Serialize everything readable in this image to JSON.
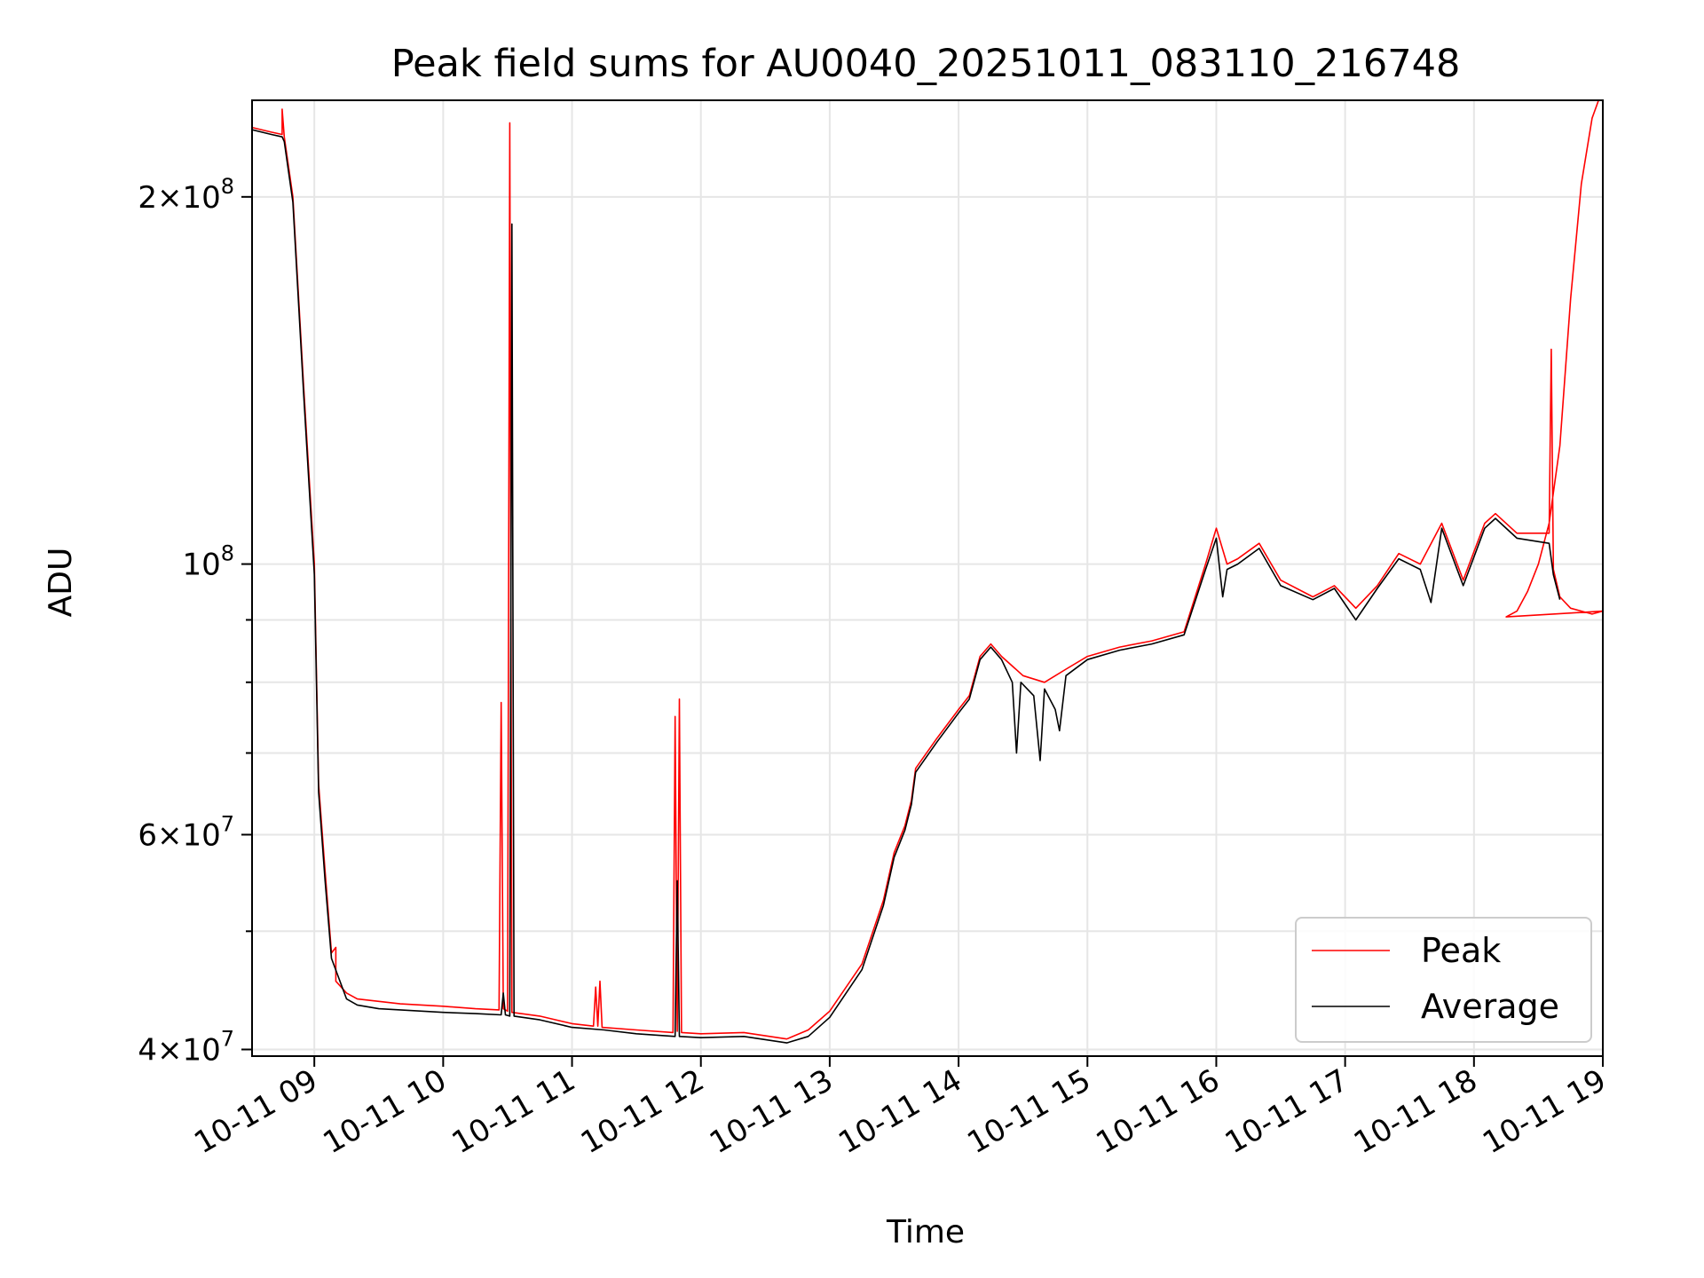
{
  "chart_data": {
    "type": "line",
    "title": "Peak field sums for AU0040_20251011_083110_216748",
    "xlabel": "Time",
    "ylabel": "ADU",
    "yscale": "log",
    "grid": true,
    "legend_position": "bottom-right",
    "xlim": [
      "2025-10-11 08:31",
      "2025-10-11 19:00"
    ],
    "ylim": [
      39500000,
      240000000
    ],
    "x_ticks": [
      {
        "value": "2025-10-11 09:00",
        "label": "10-11 09"
      },
      {
        "value": "2025-10-11 10:00",
        "label": "10-11 10"
      },
      {
        "value": "2025-10-11 11:00",
        "label": "10-11 11"
      },
      {
        "value": "2025-10-11 12:00",
        "label": "10-11 12"
      },
      {
        "value": "2025-10-11 13:00",
        "label": "10-11 13"
      },
      {
        "value": "2025-10-11 14:00",
        "label": "10-11 14"
      },
      {
        "value": "2025-10-11 15:00",
        "label": "10-11 15"
      },
      {
        "value": "2025-10-11 16:00",
        "label": "10-11 16"
      },
      {
        "value": "2025-10-11 17:00",
        "label": "10-11 17"
      },
      {
        "value": "2025-10-11 18:00",
        "label": "10-11 18"
      },
      {
        "value": "2025-10-11 19:00",
        "label": "10-11 19"
      }
    ],
    "y_ticks": [
      {
        "value": 40000000,
        "mantissa": "4",
        "exponent": "7"
      },
      {
        "value": 60000000,
        "mantissa": "6",
        "exponent": "7"
      },
      {
        "value": 100000000,
        "mantissa": "",
        "exponent": "8"
      },
      {
        "value": 200000000,
        "mantissa": "2",
        "exponent": "8"
      }
    ],
    "y_minor_ticks": [
      50000000,
      70000000,
      80000000,
      90000000
    ],
    "series": [
      {
        "name": "Peak",
        "color": "#ff0000",
        "points": [
          [
            "2025-10-11 08:31",
            228000000
          ],
          [
            "2025-10-11 08:40",
            226000000
          ],
          [
            "2025-10-11 08:45",
            225000000
          ],
          [
            "2025-10-11 08:45",
            236000000
          ],
          [
            "2025-10-11 08:46",
            224000000
          ],
          [
            "2025-10-11 08:50",
            200000000
          ],
          [
            "2025-10-11 08:55",
            140000000
          ],
          [
            "2025-10-11 09:00",
            100000000
          ],
          [
            "2025-10-11 09:02",
            66000000
          ],
          [
            "2025-10-11 09:05",
            56000000
          ],
          [
            "2025-10-11 09:08",
            48000000
          ],
          [
            "2025-10-11 09:10",
            48500000
          ],
          [
            "2025-10-11 09:10",
            45500000
          ],
          [
            "2025-10-11 09:15",
            44500000
          ],
          [
            "2025-10-11 09:20",
            44000000
          ],
          [
            "2025-10-11 09:30",
            43800000
          ],
          [
            "2025-10-11 09:40",
            43600000
          ],
          [
            "2025-10-11 09:50",
            43500000
          ],
          [
            "2025-10-11 10:00",
            43400000
          ],
          [
            "2025-10-11 10:15",
            43200000
          ],
          [
            "2025-10-11 10:26",
            43100000
          ],
          [
            "2025-10-11 10:27",
            77000000
          ],
          [
            "2025-10-11 10:28",
            43200000
          ],
          [
            "2025-10-11 10:30",
            43000000
          ],
          [
            "2025-10-11 10:31",
            230000000
          ],
          [
            "2025-10-11 10:32",
            42900000
          ],
          [
            "2025-10-11 10:45",
            42600000
          ],
          [
            "2025-10-11 11:00",
            42000000
          ],
          [
            "2025-10-11 11:10",
            41800000
          ],
          [
            "2025-10-11 11:11",
            45000000
          ],
          [
            "2025-10-11 11:12",
            41800000
          ],
          [
            "2025-10-11 11:13",
            45500000
          ],
          [
            "2025-10-11 11:14",
            41700000
          ],
          [
            "2025-10-11 11:30",
            41500000
          ],
          [
            "2025-10-11 11:47",
            41300000
          ],
          [
            "2025-10-11 11:48",
            75000000
          ],
          [
            "2025-10-11 11:49",
            41400000
          ],
          [
            "2025-10-11 11:50",
            77500000
          ],
          [
            "2025-10-11 11:51",
            41300000
          ],
          [
            "2025-10-11 12:00",
            41200000
          ],
          [
            "2025-10-11 12:20",
            41300000
          ],
          [
            "2025-10-11 12:40",
            40800000
          ],
          [
            "2025-10-11 12:50",
            41500000
          ],
          [
            "2025-10-11 13:00",
            43000000
          ],
          [
            "2025-10-11 13:15",
            47000000
          ],
          [
            "2025-10-11 13:25",
            53000000
          ],
          [
            "2025-10-11 13:30",
            58000000
          ],
          [
            "2025-10-11 13:35",
            61000000
          ],
          [
            "2025-10-11 13:38",
            64000000
          ],
          [
            "2025-10-11 13:40",
            68000000
          ],
          [
            "2025-10-11 13:50",
            72000000
          ],
          [
            "2025-10-11 14:00",
            76000000
          ],
          [
            "2025-10-11 14:05",
            78000000
          ],
          [
            "2025-10-11 14:10",
            84000000
          ],
          [
            "2025-10-11 14:15",
            86000000
          ],
          [
            "2025-10-11 14:20",
            84000000
          ],
          [
            "2025-10-11 14:30",
            81000000
          ],
          [
            "2025-10-11 14:40",
            80000000
          ],
          [
            "2025-10-11 14:50",
            82000000
          ],
          [
            "2025-10-11 15:00",
            84000000
          ],
          [
            "2025-10-11 15:15",
            85500000
          ],
          [
            "2025-10-11 15:30",
            86500000
          ],
          [
            "2025-10-11 15:45",
            88000000
          ],
          [
            "2025-10-11 15:55",
            100000000
          ],
          [
            "2025-10-11 16:00",
            107000000
          ],
          [
            "2025-10-11 16:05",
            100000000
          ],
          [
            "2025-10-11 16:10",
            101000000
          ],
          [
            "2025-10-11 16:20",
            104000000
          ],
          [
            "2025-10-11 16:30",
            97000000
          ],
          [
            "2025-10-11 16:45",
            94000000
          ],
          [
            "2025-10-11 16:55",
            96000000
          ],
          [
            "2025-10-11 17:05",
            92000000
          ],
          [
            "2025-10-11 17:15",
            96000000
          ],
          [
            "2025-10-11 17:25",
            102000000
          ],
          [
            "2025-10-11 17:35",
            100000000
          ],
          [
            "2025-10-11 17:45",
            108000000
          ],
          [
            "2025-10-11 17:55",
            97000000
          ],
          [
            "2025-10-11 18:05",
            108000000
          ],
          [
            "2025-10-11 18:10",
            110000000
          ],
          [
            "2025-10-11 18:20",
            106000000
          ],
          [
            "2025-10-11 18:35",
            106000000
          ],
          [
            "2025-10-11 18:36",
            150000000
          ],
          [
            "2025-10-11 18:37",
            99000000
          ],
          [
            "2025-10-11 18:40",
            94000000
          ],
          [
            "2025-10-11 18:45",
            92000000
          ],
          [
            "2025-10-11 18:55",
            91000000
          ],
          [
            "2025-10-11 19:00",
            91500000
          ],
          [
            "2025-10-11 18:15",
            90500000
          ],
          [
            "2025-10-11 18:20",
            91500000
          ],
          [
            "2025-10-11 18:25",
            95000000
          ],
          [
            "2025-10-11 18:30",
            100000000
          ],
          [
            "2025-10-11 18:35",
            108000000
          ],
          [
            "2025-10-11 18:40",
            125000000
          ],
          [
            "2025-10-11 18:45",
            165000000
          ],
          [
            "2025-10-11 18:50",
            205000000
          ],
          [
            "2025-10-11 18:55",
            232000000
          ],
          [
            "2025-10-11 18:58",
            240000000
          ]
        ]
      },
      {
        "name": "Average",
        "color": "#000000",
        "points": [
          [
            "2025-10-11 08:31",
            227000000
          ],
          [
            "2025-10-11 08:40",
            225000000
          ],
          [
            "2025-10-11 08:45",
            224000000
          ],
          [
            "2025-10-11 08:46",
            222000000
          ],
          [
            "2025-10-11 08:50",
            198000000
          ],
          [
            "2025-10-11 08:55",
            138000000
          ],
          [
            "2025-10-11 09:00",
            98000000
          ],
          [
            "2025-10-11 09:02",
            65000000
          ],
          [
            "2025-10-11 09:05",
            55000000
          ],
          [
            "2025-10-11 09:08",
            47500000
          ],
          [
            "2025-10-11 09:15",
            44000000
          ],
          [
            "2025-10-11 09:20",
            43500000
          ],
          [
            "2025-10-11 09:30",
            43200000
          ],
          [
            "2025-10-11 09:40",
            43100000
          ],
          [
            "2025-10-11 09:50",
            43000000
          ],
          [
            "2025-10-11 10:00",
            42900000
          ],
          [
            "2025-10-11 10:15",
            42800000
          ],
          [
            "2025-10-11 10:27",
            42700000
          ],
          [
            "2025-10-11 10:28",
            44500000
          ],
          [
            "2025-10-11 10:29",
            42700000
          ],
          [
            "2025-10-11 10:31",
            42600000
          ],
          [
            "2025-10-11 10:32",
            190000000
          ],
          [
            "2025-10-11 10:33",
            42600000
          ],
          [
            "2025-10-11 10:45",
            42300000
          ],
          [
            "2025-10-11 11:00",
            41700000
          ],
          [
            "2025-10-11 11:15",
            41500000
          ],
          [
            "2025-10-11 11:30",
            41200000
          ],
          [
            "2025-10-11 11:48",
            41000000
          ],
          [
            "2025-10-11 11:49",
            55000000
          ],
          [
            "2025-10-11 11:50",
            41000000
          ],
          [
            "2025-10-11 12:00",
            40900000
          ],
          [
            "2025-10-11 12:20",
            41000000
          ],
          [
            "2025-10-11 12:40",
            40500000
          ],
          [
            "2025-10-11 12:50",
            41000000
          ],
          [
            "2025-10-11 13:00",
            42500000
          ],
          [
            "2025-10-11 13:15",
            46500000
          ],
          [
            "2025-10-11 13:25",
            52500000
          ],
          [
            "2025-10-11 13:30",
            57500000
          ],
          [
            "2025-10-11 13:35",
            60500000
          ],
          [
            "2025-10-11 13:38",
            63500000
          ],
          [
            "2025-10-11 13:40",
            67500000
          ],
          [
            "2025-10-11 13:50",
            71500000
          ],
          [
            "2025-10-11 14:00",
            75500000
          ],
          [
            "2025-10-11 14:05",
            77500000
          ],
          [
            "2025-10-11 14:10",
            83500000
          ],
          [
            "2025-10-11 14:15",
            85500000
          ],
          [
            "2025-10-11 14:20",
            83500000
          ],
          [
            "2025-10-11 14:25",
            80000000
          ],
          [
            "2025-10-11 14:27",
            70000000
          ],
          [
            "2025-10-11 14:29",
            80000000
          ],
          [
            "2025-10-11 14:35",
            78000000
          ],
          [
            "2025-10-11 14:38",
            69000000
          ],
          [
            "2025-10-11 14:40",
            79000000
          ],
          [
            "2025-10-11 14:45",
            76000000
          ],
          [
            "2025-10-11 14:47",
            73000000
          ],
          [
            "2025-10-11 14:50",
            81000000
          ],
          [
            "2025-10-11 15:00",
            83500000
          ],
          [
            "2025-10-11 15:15",
            85000000
          ],
          [
            "2025-10-11 15:30",
            86000000
          ],
          [
            "2025-10-11 15:45",
            87500000
          ],
          [
            "2025-10-11 15:55",
            99000000
          ],
          [
            "2025-10-11 16:00",
            105000000
          ],
          [
            "2025-10-11 16:03",
            94000000
          ],
          [
            "2025-10-11 16:05",
            99000000
          ],
          [
            "2025-10-11 16:10",
            100000000
          ],
          [
            "2025-10-11 16:20",
            103000000
          ],
          [
            "2025-10-11 16:30",
            96000000
          ],
          [
            "2025-10-11 16:45",
            93500000
          ],
          [
            "2025-10-11 16:55",
            95500000
          ],
          [
            "2025-10-11 17:05",
            90000000
          ],
          [
            "2025-10-11 17:15",
            95500000
          ],
          [
            "2025-10-11 17:25",
            101000000
          ],
          [
            "2025-10-11 17:35",
            99000000
          ],
          [
            "2025-10-11 17:40",
            93000000
          ],
          [
            "2025-10-11 17:45",
            107000000
          ],
          [
            "2025-10-11 17:55",
            96000000
          ],
          [
            "2025-10-11 18:05",
            107000000
          ],
          [
            "2025-10-11 18:10",
            109000000
          ],
          [
            "2025-10-11 18:20",
            105000000
          ],
          [
            "2025-10-11 18:35",
            104000000
          ],
          [
            "2025-10-11 18:37",
            98000000
          ],
          [
            "2025-10-11 18:40",
            93500000
          ]
        ]
      }
    ],
    "legend": [
      {
        "label": "Peak",
        "color": "#ff0000"
      },
      {
        "label": "Average",
        "color": "#000000"
      }
    ]
  }
}
